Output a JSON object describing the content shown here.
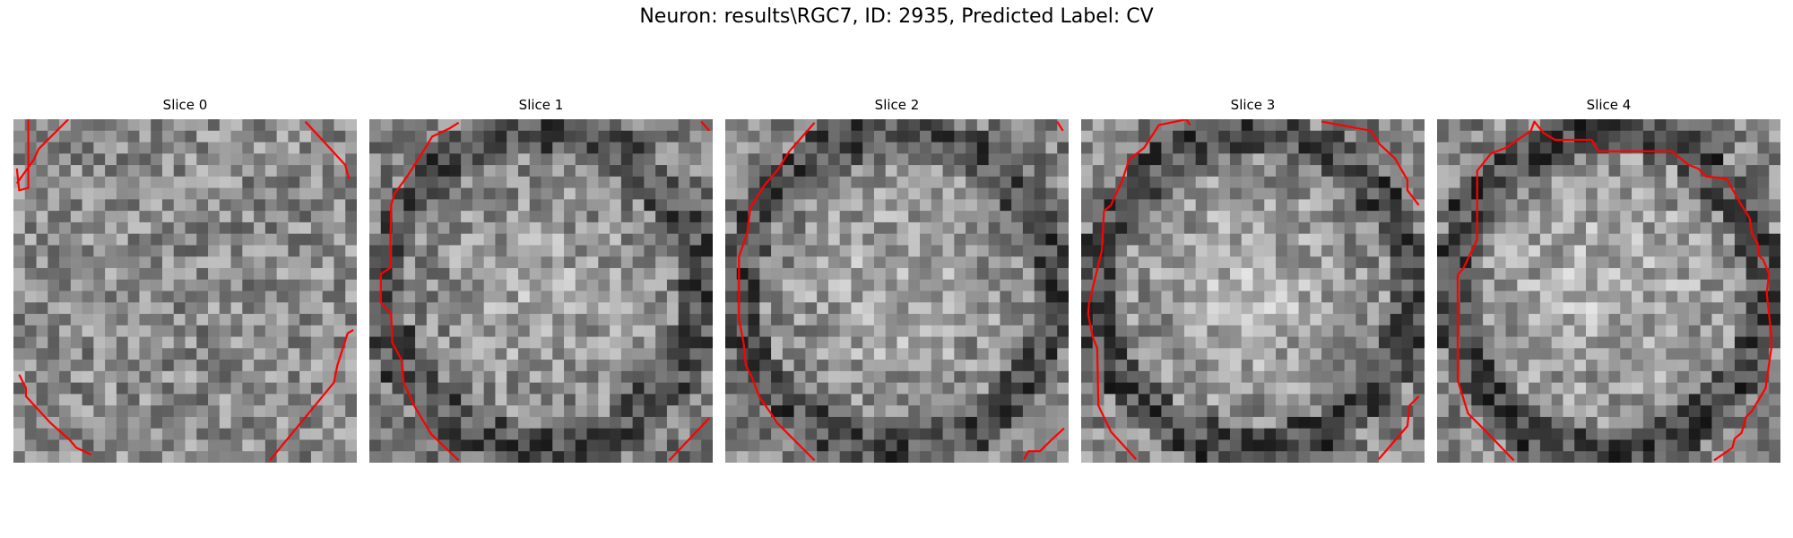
{
  "figure": {
    "title": "Neuron: results\\RGC7, ID: 2935, Predicted Label: CV"
  },
  "panels": [
    {
      "title": "Slice 0"
    },
    {
      "title": "Slice 1"
    },
    {
      "title": "Slice 2"
    },
    {
      "title": "Slice 3"
    },
    {
      "title": "Slice 4"
    }
  ],
  "colors": {
    "contour": "#ff0000",
    "background": "#ffffff"
  }
}
